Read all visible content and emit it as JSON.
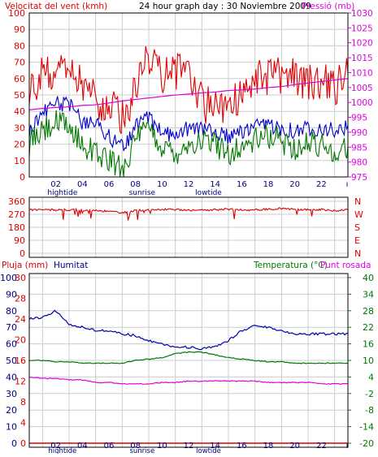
{
  "colors": {
    "wind": "#e00000",
    "pressure": "#dd00dd",
    "direction": "#dd0000",
    "rain": "#dd0000",
    "humidity": "#0000aa",
    "temperature": "#007700",
    "dewpoint": "#dd00dd",
    "frame": "#000000",
    "grid": "#cccccc",
    "navy": "#000080"
  },
  "hour_labels": [
    "02",
    "04",
    "06",
    "08",
    "10",
    "12",
    "14",
    "16",
    "18",
    "20",
    "22"
  ],
  "tide_labels": [
    {
      "text": "hightide",
      "at": 2.5
    },
    {
      "text": "sunrise",
      "at": 8.5
    },
    {
      "text": "lowtide",
      "at": 13.5
    }
  ],
  "chart_data": [
    {
      "type": "line",
      "title": "24 hour graph day : 30 Noviembre 2009",
      "ylabel": "Velocitat del vent (kmh)",
      "y2label": "Pressió (mb)",
      "ylim": [
        0,
        100
      ],
      "y2lim": [
        975,
        1030
      ],
      "yticks": [
        0,
        10,
        20,
        30,
        40,
        50,
        60,
        70,
        80,
        90,
        100
      ],
      "y2ticks": [
        975,
        980,
        985,
        990,
        995,
        1000,
        1005,
        1010,
        1015,
        1020,
        1025,
        1030
      ],
      "x": [
        0,
        1,
        2,
        3,
        4,
        5,
        6,
        7,
        8,
        9,
        10,
        11,
        12,
        13,
        14,
        15,
        16,
        17,
        18,
        19,
        20,
        21,
        22,
        23,
        24
      ],
      "series": [
        {
          "key": "gust",
          "axis": "left",
          "color": "#e00000",
          "jitter": 12,
          "values": [
            55,
            62,
            65,
            62,
            55,
            48,
            42,
            38,
            52,
            75,
            60,
            65,
            62,
            45,
            42,
            40,
            50,
            62,
            60,
            62,
            62,
            58,
            60,
            55,
            62
          ]
        },
        {
          "key": "avg",
          "axis": "left",
          "color": "#0000cc",
          "jitter": 5,
          "values": [
            28,
            40,
            45,
            44,
            33,
            33,
            25,
            18,
            30,
            36,
            28,
            25,
            30,
            30,
            28,
            25,
            27,
            30,
            32,
            30,
            28,
            30,
            30,
            28,
            30
          ]
        },
        {
          "key": "min",
          "axis": "left",
          "color": "#007700",
          "jitter": 8,
          "values": [
            20,
            28,
            33,
            30,
            20,
            15,
            10,
            5,
            22,
            30,
            18,
            15,
            20,
            22,
            20,
            15,
            18,
            22,
            25,
            22,
            18,
            20,
            20,
            15,
            18
          ]
        },
        {
          "key": "pressure",
          "axis": "right",
          "color": "#dd00dd",
          "jitter": 0,
          "values": [
            997.5,
            998,
            998.3,
            998.5,
            999,
            999.2,
            999.8,
            1000.5,
            1001,
            1001.5,
            1002,
            1002.5,
            1002.8,
            1003.2,
            1003.5,
            1004,
            1004.2,
            1004.5,
            1005,
            1005.3,
            1006,
            1006.5,
            1007,
            1007.5,
            1008
          ]
        }
      ]
    },
    {
      "type": "line",
      "yticks": [
        "360",
        "270",
        "180",
        "90",
        "0"
      ],
      "ylim": [
        0,
        360
      ],
      "compass": [
        "N",
        "W",
        "S",
        "E",
        "N"
      ],
      "series": [
        {
          "key": "direction",
          "color": "#dd0000",
          "values": [
            300,
            305,
            298,
            302,
            300,
            296,
            290,
            280,
            298,
            300,
            302,
            304,
            300,
            298,
            302,
            305,
            300,
            300,
            306,
            310,
            305,
            300,
            302,
            296,
            300
          ]
        }
      ]
    },
    {
      "type": "line",
      "ylabel": "Pluja (mm)",
      "ylabel2": "Humitat",
      "y2label": "Temperatura (°C)",
      "y2label2": "Punt rosada",
      "ylim_rain": [
        0,
        30
      ],
      "ylim_hum": [
        0,
        100
      ],
      "ylim_temp": [
        -20,
        40
      ],
      "rain_ticks": [
        "30",
        "28",
        "24",
        "20",
        "16",
        "12",
        "8",
        "4",
        "0"
      ],
      "hum_ticks": [
        "100",
        "90",
        "80",
        "70",
        "60",
        "50",
        "40",
        "30",
        "20",
        "10",
        "0"
      ],
      "temp_ticks": [
        "40",
        "34",
        "28",
        "22",
        "16",
        "10",
        "4",
        "-2",
        "-8",
        "-14",
        "-20"
      ],
      "series": [
        {
          "key": "humidity",
          "axis": "hum",
          "color": "#0000aa",
          "values": [
            75,
            76,
            80,
            72,
            70,
            68,
            68,
            66,
            65,
            62,
            60,
            58,
            58,
            57,
            58,
            62,
            68,
            71,
            70,
            68,
            66,
            66,
            66,
            66,
            66
          ]
        },
        {
          "key": "temperature",
          "axis": "temp",
          "color": "#007700",
          "values": [
            10,
            10,
            9.5,
            9.5,
            9,
            9,
            9,
            9,
            10,
            10.5,
            11,
            12.5,
            13,
            13,
            12,
            11,
            10.5,
            10,
            9.5,
            9.5,
            9,
            9,
            9,
            9,
            9
          ]
        },
        {
          "key": "dewpoint",
          "axis": "temp",
          "color": "#dd00dd",
          "values": [
            4,
            3.5,
            3.5,
            3,
            3,
            2,
            2,
            1.5,
            1.5,
            1.5,
            2,
            2,
            2.5,
            2.5,
            2.5,
            2.5,
            2.5,
            2.5,
            2,
            2,
            2,
            2,
            1.5,
            1.5,
            1.5
          ]
        },
        {
          "key": "rain",
          "axis": "rain",
          "color": "#dd0000",
          "values": [
            0,
            0,
            0,
            0,
            0,
            0,
            0,
            0,
            0,
            0,
            0,
            0,
            0,
            0,
            0,
            0,
            0,
            0,
            0,
            0,
            0,
            0,
            0,
            0,
            0
          ]
        }
      ]
    }
  ]
}
